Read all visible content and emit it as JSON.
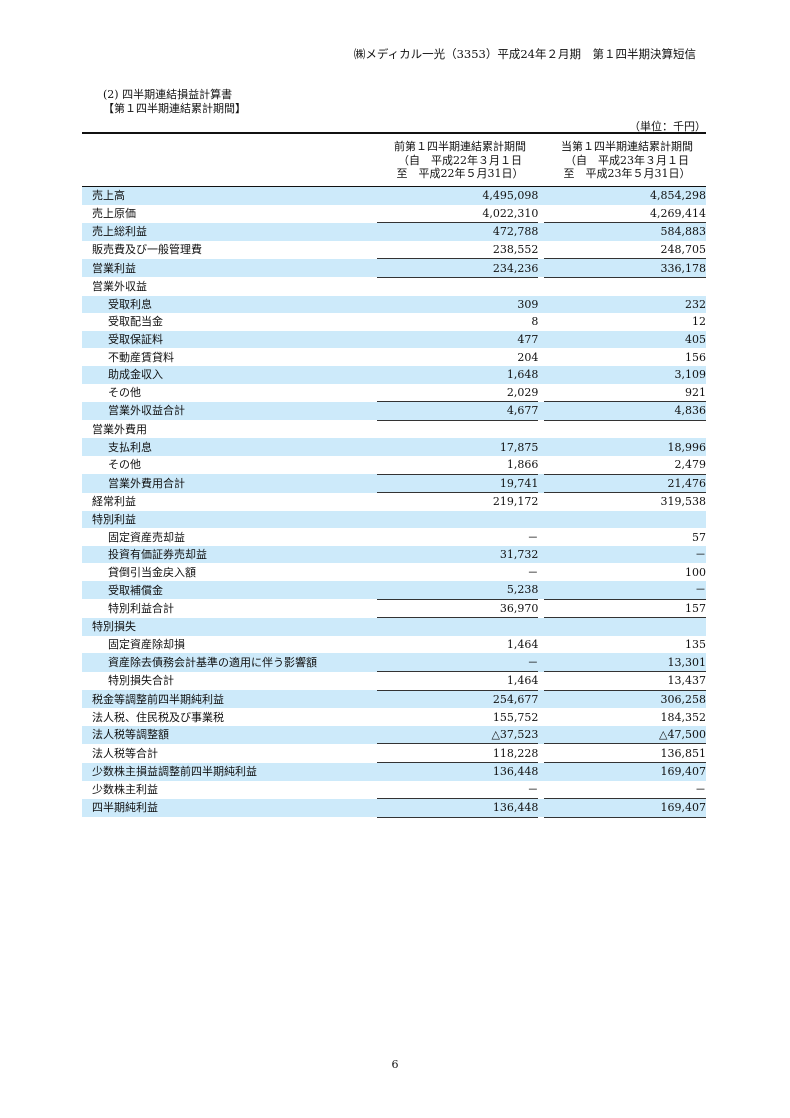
{
  "header": "㈱メディカル一光（3353）平成24年２月期　第１四半期決算短信",
  "section": {
    "title": "(2) 四半期連結損益計算書",
    "subtitle": "【第１四半期連結累計期間】"
  },
  "unit": "（単位：千円）",
  "columns": [
    {
      "line1": "前第１四半期連結累計期間",
      "line2": "（自　平成22年３月１日",
      "line3": "至　平成22年５月31日）"
    },
    {
      "line1": "当第１四半期連結累計期間",
      "line2": "（自　平成23年３月１日",
      "line3": "至　平成23年５月31日）"
    }
  ],
  "rows": [
    {
      "label": "売上高",
      "indent": false,
      "prev": "4,495,098",
      "curr": "4,854,298",
      "underline": false
    },
    {
      "label": "売上原価",
      "indent": false,
      "prev": "4,022,310",
      "curr": "4,269,414",
      "underline": true
    },
    {
      "label": "売上総利益",
      "indent": false,
      "prev": "472,788",
      "curr": "584,883",
      "underline": false
    },
    {
      "label": "販売費及び一般管理費",
      "indent": false,
      "prev": "238,552",
      "curr": "248,705",
      "underline": true
    },
    {
      "label": "営業利益",
      "indent": false,
      "prev": "234,236",
      "curr": "336,178",
      "underline": true
    },
    {
      "label": "営業外収益",
      "indent": false,
      "prev": "",
      "curr": "",
      "underline": false
    },
    {
      "label": "受取利息",
      "indent": true,
      "prev": "309",
      "curr": "232",
      "underline": false
    },
    {
      "label": "受取配当金",
      "indent": true,
      "prev": "8",
      "curr": "12",
      "underline": false
    },
    {
      "label": "受取保証料",
      "indent": true,
      "prev": "477",
      "curr": "405",
      "underline": false
    },
    {
      "label": "不動産賃貸料",
      "indent": true,
      "prev": "204",
      "curr": "156",
      "underline": false
    },
    {
      "label": "助成金収入",
      "indent": true,
      "prev": "1,648",
      "curr": "3,109",
      "underline": false
    },
    {
      "label": "その他",
      "indent": true,
      "prev": "2,029",
      "curr": "921",
      "underline": true
    },
    {
      "label": "営業外収益合計",
      "indent": true,
      "prev": "4,677",
      "curr": "4,836",
      "underline": true
    },
    {
      "label": "営業外費用",
      "indent": false,
      "prev": "",
      "curr": "",
      "underline": false
    },
    {
      "label": "支払利息",
      "indent": true,
      "prev": "17,875",
      "curr": "18,996",
      "underline": false
    },
    {
      "label": "その他",
      "indent": true,
      "prev": "1,866",
      "curr": "2,479",
      "underline": true
    },
    {
      "label": "営業外費用合計",
      "indent": true,
      "prev": "19,741",
      "curr": "21,476",
      "underline": true
    },
    {
      "label": "経常利益",
      "indent": false,
      "prev": "219,172",
      "curr": "319,538",
      "underline": false
    },
    {
      "label": "特別利益",
      "indent": false,
      "prev": "",
      "curr": "",
      "underline": false
    },
    {
      "label": "固定資産売却益",
      "indent": true,
      "prev": "－",
      "curr": "57",
      "underline": false
    },
    {
      "label": "投資有価証券売却益",
      "indent": true,
      "prev": "31,732",
      "curr": "－",
      "underline": false
    },
    {
      "label": "貸倒引当金戻入額",
      "indent": true,
      "prev": "－",
      "curr": "100",
      "underline": false
    },
    {
      "label": "受取補償金",
      "indent": true,
      "prev": "5,238",
      "curr": "－",
      "underline": true
    },
    {
      "label": "特別利益合計",
      "indent": true,
      "prev": "36,970",
      "curr": "157",
      "underline": true
    },
    {
      "label": "特別損失",
      "indent": false,
      "prev": "",
      "curr": "",
      "underline": false
    },
    {
      "label": "固定資産除却損",
      "indent": true,
      "prev": "1,464",
      "curr": "135",
      "underline": false
    },
    {
      "label": "資産除去債務会計基準の適用に伴う影響額",
      "indent": true,
      "prev": "－",
      "curr": "13,301",
      "underline": true
    },
    {
      "label": "特別損失合計",
      "indent": true,
      "prev": "1,464",
      "curr": "13,437",
      "underline": true
    },
    {
      "label": "税金等調整前四半期純利益",
      "indent": false,
      "prev": "254,677",
      "curr": "306,258",
      "underline": false
    },
    {
      "label": "法人税、住民税及び事業税",
      "indent": false,
      "prev": "155,752",
      "curr": "184,352",
      "underline": false
    },
    {
      "label": "法人税等調整額",
      "indent": false,
      "prev": "△37,523",
      "curr": "△47,500",
      "underline": true
    },
    {
      "label": "法人税等合計",
      "indent": false,
      "prev": "118,228",
      "curr": "136,851",
      "underline": true
    },
    {
      "label": "少数株主損益調整前四半期純利益",
      "indent": false,
      "prev": "136,448",
      "curr": "169,407",
      "underline": false
    },
    {
      "label": "少数株主利益",
      "indent": false,
      "prev": "－",
      "curr": "－",
      "underline": true
    },
    {
      "label": "四半期純利益",
      "indent": false,
      "prev": "136,448",
      "curr": "169,407",
      "underline": true
    }
  ],
  "page_number": "6",
  "colors": {
    "row_shade": "#cdeafa"
  }
}
